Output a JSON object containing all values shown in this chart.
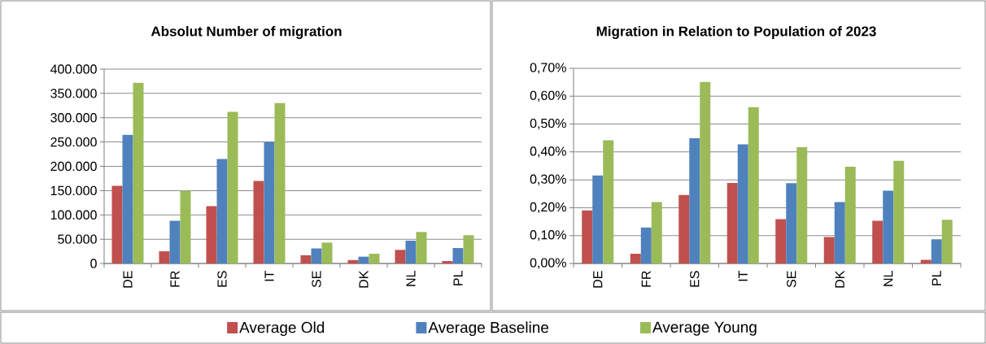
{
  "chart_data": [
    {
      "type": "bar",
      "title": "Absolut Number of migration",
      "categories": [
        "DE",
        "FR",
        "ES",
        "IT",
        "SE",
        "DK",
        "NL",
        "PL"
      ],
      "series": [
        {
          "name": "Average Old",
          "color": "#c0504d",
          "values": [
            160000,
            25000,
            118000,
            170000,
            17000,
            7000,
            28000,
            5000
          ]
        },
        {
          "name": "Average Baseline",
          "color": "#4f81bd",
          "values": [
            265000,
            88000,
            215000,
            250000,
            31000,
            14000,
            47000,
            32000
          ]
        },
        {
          "name": "Average Young",
          "color": "#9bbb59",
          "values": [
            372000,
            150000,
            312000,
            330000,
            43000,
            20000,
            65000,
            58000
          ]
        }
      ],
      "ylim": [
        0,
        400000
      ],
      "yticks": [
        {
          "value": 0,
          "label": "0"
        },
        {
          "value": 50000,
          "label": "50.000"
        },
        {
          "value": 100000,
          "label": "100.000"
        },
        {
          "value": 150000,
          "label": "150.000"
        },
        {
          "value": 200000,
          "label": "200.000"
        },
        {
          "value": 250000,
          "label": "250.000"
        },
        {
          "value": 300000,
          "label": "300.000"
        },
        {
          "value": 350000,
          "label": "350.000"
        },
        {
          "value": 400000,
          "label": "400.000"
        }
      ],
      "grid": "y",
      "legend": "bottom"
    },
    {
      "type": "bar",
      "title": "Migration in Relation to Population of 2023",
      "categories": [
        "DE",
        "FR",
        "ES",
        "IT",
        "SE",
        "DK",
        "NL",
        "PL"
      ],
      "series": [
        {
          "color": "#c0504d",
          "values": [
            0.19,
            0.035,
            0.246,
            0.289,
            0.159,
            0.095,
            0.153,
            0.013
          ]
        },
        {
          "color": "#4f81bd",
          "values": [
            0.316,
            0.129,
            0.449,
            0.427,
            0.288,
            0.22,
            0.261,
            0.087
          ]
        },
        {
          "color": "#9bbb59",
          "values": [
            0.442,
            0.22,
            0.651,
            0.561,
            0.417,
            0.347,
            0.368,
            0.157
          ]
        }
      ],
      "ylim": [
        0,
        0.7
      ],
      "yticks": [
        {
          "value": 0,
          "label": "0,00%"
        },
        {
          "value": 0.1,
          "label": "0,10%"
        },
        {
          "value": 0.2,
          "label": "0,20%"
        },
        {
          "value": 0.3,
          "label": "0,30%"
        },
        {
          "value": 0.4,
          "label": "0,40%"
        },
        {
          "value": 0.5,
          "label": "0,50%"
        },
        {
          "value": 0.6,
          "label": "0,60%"
        },
        {
          "value": 0.7,
          "label": "0,70%"
        }
      ],
      "grid": "y"
    }
  ]
}
